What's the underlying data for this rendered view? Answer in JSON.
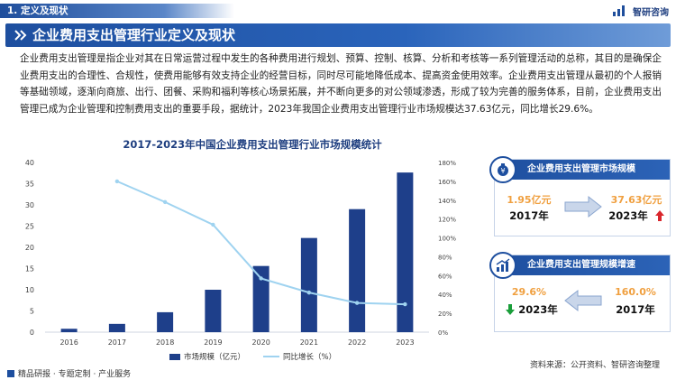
{
  "header": {
    "section": "1. 定义及现状",
    "brand": "智研咨询"
  },
  "title": "企业费用支出管理行业定义及现状",
  "paragraph": "企业费用支出管理是指企业对其在日常运营过程中发生的各种费用进行规划、预算、控制、核算、分析和考核等一系列管理活动的总称，其目的是确保企业费用支出的合理性、合规性，使费用能够有效支持企业的经营目标，同时尽可能地降低成本、提高资金使用效率。企业费用支出管理从最初的个人报销等基础领域，逐渐向商旅、出行、团餐、采购和福利等核心场景拓展，并不断向更多的对公领域渗透，形成了较为完善的服务体系，目前，企业费用支出管理已成为企业管理和控制费用支出的重要手段，据统计，2023年我国企业费用支出管理行业市场规模达37.63亿元，同比增长29.6%。",
  "chart_data": {
    "type": "bar",
    "title": "2017-2023年中国企业费用支出管理行业市场规模统计",
    "categories": [
      "2016",
      "2017",
      "2018",
      "2019",
      "2020",
      "2021",
      "2022",
      "2023"
    ],
    "series": [
      {
        "name": "市场规模（亿元）",
        "type": "bar",
        "axis": "left",
        "color": "#1e3f8a",
        "values": [
          0.8,
          1.95,
          4.7,
          10.0,
          15.6,
          22.2,
          29.0,
          37.63
        ]
      },
      {
        "name": "同比增长（%）",
        "type": "line",
        "axis": "right",
        "color": "#9fd3f0",
        "values": [
          null,
          160.0,
          138.0,
          114.0,
          57.0,
          42.0,
          31.0,
          29.6
        ]
      }
    ],
    "ylim_left": [
      0,
      40
    ],
    "yticks_left": [
      "0",
      "5",
      "10",
      "15",
      "20",
      "25",
      "30",
      "35",
      "40"
    ],
    "ylim_right": [
      0,
      180
    ],
    "yticks_right": [
      "0%",
      "20%",
      "40%",
      "60%",
      "80%",
      "100%",
      "120%",
      "140%",
      "160%",
      "180%"
    ],
    "grid": false,
    "legend": "bottom"
  },
  "panels": {
    "scale": {
      "title": "企业费用支出管理市场规模",
      "from_value": "1.95亿元",
      "from_year": "2017年",
      "to_value": "37.63亿元",
      "to_year": "2023年"
    },
    "growth": {
      "title": "企业费用支出管理规模增速",
      "from_value": "160.0%",
      "from_year": "2017年",
      "to_value": "29.6%",
      "to_year": "2023年"
    }
  },
  "footer": {
    "left": "精品研报 · 专题定制 · 产业服务",
    "source": "资料来源：公开资料、智研咨询整理"
  },
  "colors": {
    "primary": "#1e4f9f",
    "accent": "#f0a040",
    "up": "#d9262c",
    "down": "#1a9e3a"
  }
}
